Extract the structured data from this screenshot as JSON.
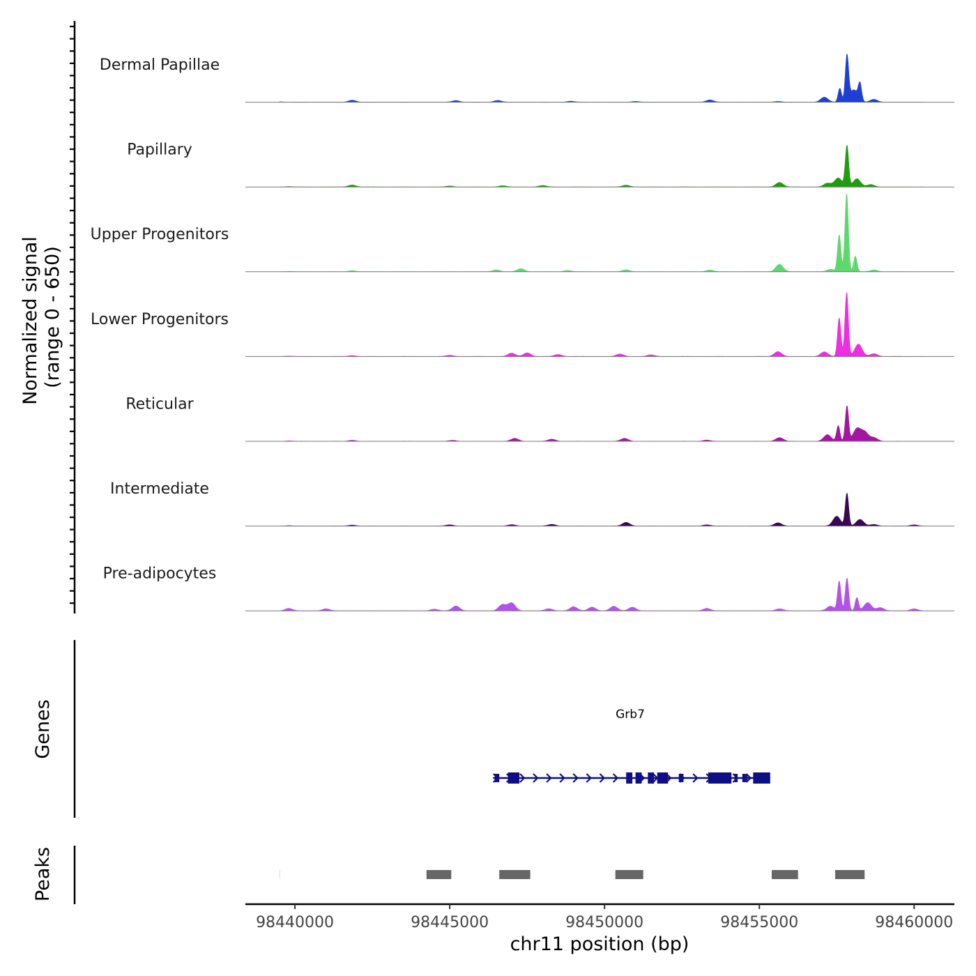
{
  "chart_data": {
    "type": "area",
    "title": "",
    "y_axis_title_line1": "Normalized signal",
    "y_axis_title_line2": "(range 0 - 650)",
    "y_range": [
      0,
      650
    ],
    "x_axis_title": "chr11 position (bp)",
    "x_range": [
      98438400,
      98461300
    ],
    "x_ticks": [
      98440000,
      98445000,
      98450000,
      98455000,
      98460000
    ],
    "x_tick_labels": [
      "98440000",
      "98445000",
      "98450000",
      "98455000",
      "98460000"
    ],
    "genes_track_label": "Genes",
    "peaks_track_label": "Peaks",
    "tracks": [
      {
        "name": "Dermal Papillae",
        "color": "#1e3fd6",
        "peaks": [
          [
            98439500,
            5
          ],
          [
            98441850,
            25
          ],
          [
            98445200,
            20
          ],
          [
            98446550,
            22
          ],
          [
            98448900,
            12
          ],
          [
            98451000,
            10
          ],
          [
            98453400,
            28
          ],
          [
            98455600,
            10
          ],
          [
            98457100,
            60
          ],
          [
            98457600,
            170
          ],
          [
            98457830,
            560
          ],
          [
            98458050,
            150
          ],
          [
            98458250,
            210
          ],
          [
            98458700,
            35
          ]
        ]
      },
      {
        "name": "Papillary",
        "color": "#1e9e0e",
        "peaks": [
          [
            98439800,
            5
          ],
          [
            98441850,
            25
          ],
          [
            98445000,
            12
          ],
          [
            98446700,
            15
          ],
          [
            98448000,
            18
          ],
          [
            98450700,
            22
          ],
          [
            98455650,
            55
          ],
          [
            98457200,
            45
          ],
          [
            98457550,
            110
          ],
          [
            98457830,
            500
          ],
          [
            98458150,
            100
          ],
          [
            98458600,
            30
          ]
        ]
      },
      {
        "name": "Upper Progenitors",
        "color": "#5ed86c",
        "peaks": [
          [
            98439800,
            5
          ],
          [
            98441850,
            15
          ],
          [
            98446500,
            25
          ],
          [
            98447300,
            40
          ],
          [
            98448800,
            18
          ],
          [
            98450700,
            25
          ],
          [
            98453400,
            22
          ],
          [
            98455650,
            95
          ],
          [
            98457300,
            30
          ],
          [
            98457580,
            470
          ],
          [
            98457820,
            1000
          ],
          [
            98458100,
            200
          ],
          [
            98458700,
            25
          ]
        ]
      },
      {
        "name": "Lower Progenitors",
        "color": "#ee2ee0",
        "peaks": [
          [
            98439800,
            5
          ],
          [
            98441850,
            12
          ],
          [
            98445000,
            15
          ],
          [
            98447000,
            40
          ],
          [
            98447500,
            45
          ],
          [
            98448500,
            25
          ],
          [
            98450500,
            30
          ],
          [
            98451500,
            20
          ],
          [
            98455600,
            60
          ],
          [
            98457100,
            55
          ],
          [
            98457580,
            470
          ],
          [
            98457820,
            780
          ],
          [
            98458200,
            150
          ],
          [
            98458700,
            35
          ]
        ]
      },
      {
        "name": "Reticular",
        "color": "#a516a0",
        "peaks": [
          [
            98439800,
            5
          ],
          [
            98441850,
            12
          ],
          [
            98445100,
            12
          ],
          [
            98447100,
            35
          ],
          [
            98448300,
            25
          ],
          [
            98450650,
            35
          ],
          [
            98453300,
            15
          ],
          [
            98455650,
            45
          ],
          [
            98457200,
            80
          ],
          [
            98457550,
            190
          ],
          [
            98457830,
            430
          ],
          [
            98458150,
            150
          ],
          [
            98458400,
            110
          ],
          [
            98458700,
            45
          ]
        ]
      },
      {
        "name": "Intermediate",
        "color": "#3b0755",
        "peaks": [
          [
            98439800,
            4
          ],
          [
            98441850,
            12
          ],
          [
            98445000,
            15
          ],
          [
            98447000,
            15
          ],
          [
            98448300,
            20
          ],
          [
            98450700,
            45
          ],
          [
            98453300,
            15
          ],
          [
            98455600,
            40
          ],
          [
            98457500,
            120
          ],
          [
            98457830,
            400
          ],
          [
            98458250,
            80
          ],
          [
            98458700,
            20
          ],
          [
            98460000,
            15
          ]
        ]
      },
      {
        "name": "Pre-adipocytes",
        "color": "#b352ea",
        "peaks": [
          [
            98439800,
            30
          ],
          [
            98441000,
            25
          ],
          [
            98444500,
            20
          ],
          [
            98445200,
            60
          ],
          [
            98446700,
            75
          ],
          [
            98447000,
            95
          ],
          [
            98448200,
            25
          ],
          [
            98449000,
            50
          ],
          [
            98449600,
            45
          ],
          [
            98450300,
            55
          ],
          [
            98450900,
            45
          ],
          [
            98453300,
            30
          ],
          [
            98455650,
            25
          ],
          [
            98457300,
            55
          ],
          [
            98457580,
            360
          ],
          [
            98457830,
            400
          ],
          [
            98458150,
            160
          ],
          [
            98458500,
            100
          ],
          [
            98458900,
            40
          ],
          [
            98460000,
            25
          ]
        ]
      }
    ],
    "gene": {
      "name": "Grb7",
      "color": "#0f0f85",
      "start": 98446400,
      "end": 98455350,
      "strand": "+",
      "exons": [
        [
          98446450,
          98446600
        ],
        [
          98446880,
          98447250
        ],
        [
          98450700,
          98450900
        ],
        [
          98451000,
          98451200
        ],
        [
          98451400,
          98451600
        ],
        [
          98451700,
          98452050
        ],
        [
          98452400,
          98452550
        ],
        [
          98453350,
          98454100
        ],
        [
          98454200,
          98454300
        ],
        [
          98454450,
          98454550
        ],
        [
          98454800,
          98455000
        ],
        [
          98454550,
          98454620
        ],
        [
          98454900,
          98455350
        ]
      ]
    },
    "peak_regions": [
      [
        98439500,
        98439520
      ],
      [
        98444250,
        98445050
      ],
      [
        98446600,
        98447600
      ],
      [
        98450350,
        98451250
      ],
      [
        98455400,
        98456250
      ],
      [
        98457450,
        98458400
      ]
    ]
  }
}
